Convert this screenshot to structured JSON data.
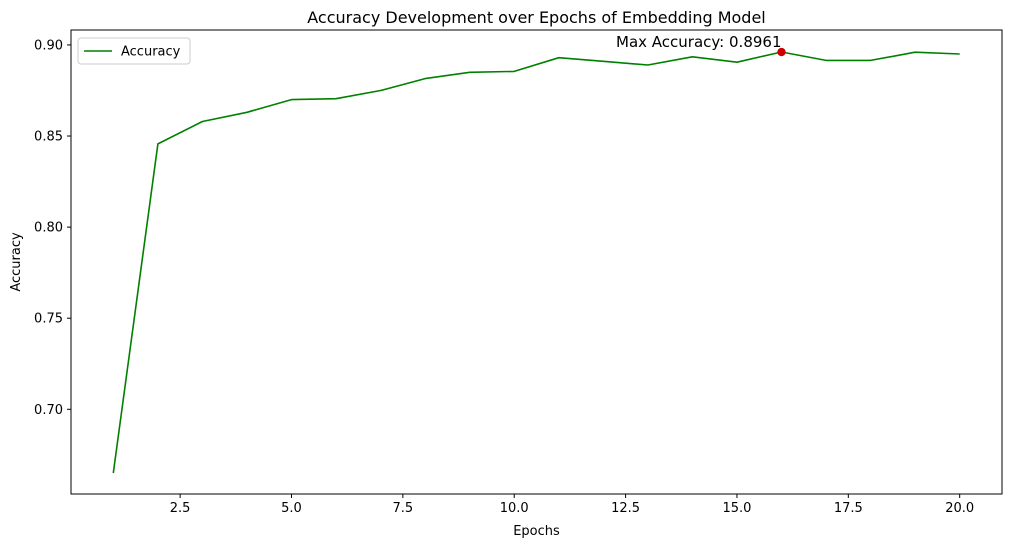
{
  "chart_data": {
    "type": "line",
    "title": "Accuracy Development over Epochs of Embedding Model",
    "xlabel": "Epochs",
    "ylabel": "Accuracy",
    "xlim": [
      0.05,
      20.95
    ],
    "ylim": [
      0.6535,
      0.9082
    ],
    "xticks": [
      2.5,
      5.0,
      7.5,
      10.0,
      12.5,
      15.0,
      17.5,
      20.0
    ],
    "xtick_labels": [
      "2.5",
      "5.0",
      "7.5",
      "10.0",
      "12.5",
      "15.0",
      "17.5",
      "20.0"
    ],
    "yticks": [
      0.7,
      0.75,
      0.8,
      0.85,
      0.9
    ],
    "ytick_labels": [
      "0.70",
      "0.75",
      "0.80",
      "0.85",
      "0.90"
    ],
    "grid": false,
    "legend_position": "top-left",
    "series": [
      {
        "name": "Accuracy",
        "color": "#008000",
        "x": [
          1,
          2,
          3,
          4,
          5,
          6,
          7,
          8,
          9,
          10,
          11,
          12,
          13,
          14,
          15,
          16,
          17,
          18,
          19,
          20
        ],
        "y": [
          0.665,
          0.8457,
          0.858,
          0.863,
          0.87,
          0.8705,
          0.875,
          0.8815,
          0.885,
          0.8855,
          0.893,
          0.891,
          0.889,
          0.8935,
          0.8905,
          0.8961,
          0.8915,
          0.8915,
          0.896,
          0.895
        ]
      }
    ],
    "annotations": [
      {
        "text": "Max Accuracy: 0.8961",
        "x": 16,
        "y": 0.8961,
        "marker_color": "#cc0000"
      }
    ]
  }
}
